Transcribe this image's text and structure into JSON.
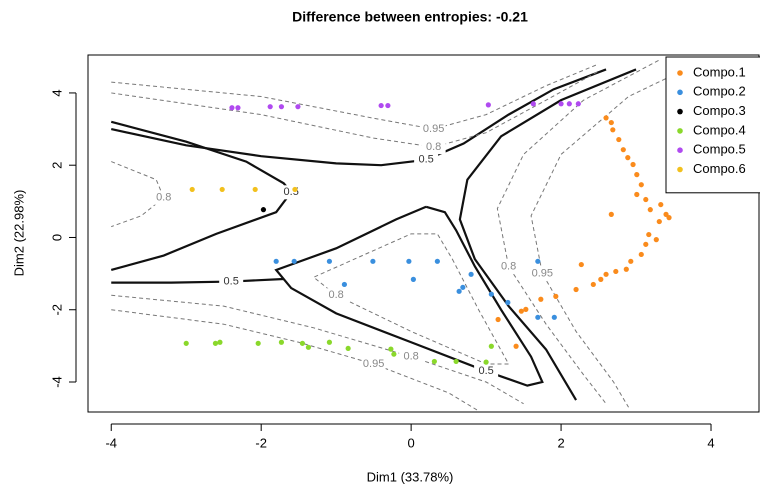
{
  "chart_data": {
    "type": "scatter",
    "title": "Difference between entropies: -0.21",
    "xlabel": "Dim1 (33.78%)",
    "ylabel": "Dim2 (22.98%)",
    "xlim": [
      -4.31,
      4.64
    ],
    "ylim": [
      -4.83,
      5.05
    ],
    "xticks": [
      -4,
      -2,
      0,
      2,
      4
    ],
    "yticks": [
      -4,
      -2,
      0,
      2,
      4
    ],
    "grid": false,
    "legend": "top-right",
    "series": [
      {
        "name": "Compo.1",
        "color": "#fa8b1c",
        "x": [
          2.6,
          2.67,
          2.69,
          2.77,
          2.83,
          2.89,
          2.96,
          3.01,
          3.07,
          3.01,
          3.13,
          3.19,
          3.33,
          3.4,
          3.44,
          3.31,
          3.17,
          3.27,
          3.13,
          3.07,
          2.93,
          2.87,
          2.73,
          2.6,
          2.53,
          2.43,
          2.2,
          1.93,
          1.73,
          1.53,
          1.47,
          1.16,
          1.4,
          2.67,
          2.27
        ],
        "y": [
          3.31,
          3.18,
          2.98,
          2.71,
          2.43,
          2.21,
          2.02,
          1.74,
          1.46,
          1.19,
          1.05,
          0.77,
          0.91,
          0.64,
          0.55,
          0.44,
          0.08,
          -0.06,
          -0.19,
          -0.47,
          -0.66,
          -0.88,
          -0.94,
          -1.02,
          -1.16,
          -1.3,
          -1.44,
          -1.63,
          -1.71,
          -1.99,
          -2.04,
          -2.27,
          -3.01,
          0.64,
          -0.75
        ]
      },
      {
        "name": "Compo.2",
        "color": "#3a8fde",
        "x": [
          -1.8,
          -1.56,
          -1.09,
          -0.89,
          -0.51,
          -0.03,
          0.03,
          0.35,
          0.8,
          0.64,
          0.69,
          1.07,
          1.29,
          1.69,
          1.91,
          1.69
        ],
        "y": [
          -0.66,
          -0.66,
          -0.66,
          -1.3,
          -0.66,
          -0.66,
          -1.16,
          -0.66,
          -1.02,
          -1.49,
          -1.38,
          -1.57,
          -1.8,
          -2.21,
          -2.21,
          -0.66
        ]
      },
      {
        "name": "Compo.3",
        "color": "#000000",
        "x": [
          -1.97
        ],
        "y": [
          0.77
        ]
      },
      {
        "name": "Compo.4",
        "color": "#8ad82b",
        "x": [
          -3.0,
          -2.61,
          -2.55,
          -2.04,
          -1.73,
          -1.45,
          -1.37,
          -1.09,
          -0.84,
          -0.27,
          -0.23,
          0.31,
          0.6,
          1.0,
          1.07
        ],
        "y": [
          -2.93,
          -2.93,
          -2.9,
          -2.93,
          -2.9,
          -2.93,
          -3.04,
          -2.9,
          -3.07,
          -3.09,
          -3.23,
          -3.43,
          -3.43,
          -3.45,
          -3.01
        ]
      },
      {
        "name": "Compo.5",
        "color": "#b04af0",
        "x": [
          -2.39,
          -2.31,
          -1.88,
          -1.73,
          -1.51,
          -0.4,
          -0.31,
          1.03,
          1.63,
          2.0,
          2.11,
          2.23
        ],
        "y": [
          3.59,
          3.59,
          3.62,
          3.62,
          3.62,
          3.65,
          3.65,
          3.67,
          3.7,
          3.7,
          3.7,
          3.7
        ]
      },
      {
        "name": "Compo.6",
        "color": "#f2c01d",
        "x": [
          -2.92,
          -2.52,
          -2.08,
          -1.55
        ],
        "y": [
          1.33,
          1.33,
          1.33,
          1.33
        ]
      }
    ],
    "contours": [
      {
        "level": 0.5,
        "style": "solid",
        "x": [
          -4,
          -3,
          -2.2,
          -1.7,
          -1.6,
          -1.8,
          -2.6,
          -3.3,
          -4
        ],
        "y": [
          3.2,
          2.65,
          2.1,
          1.5,
          1.25,
          0.7,
          0.1,
          -0.5,
          -0.9
        ]
      },
      {
        "level": 0.5,
        "style": "solid",
        "x": [
          -4,
          -3.2,
          -2.4,
          -1.7
        ],
        "y": [
          -1.25,
          -1.25,
          -1.22,
          -1.15
        ]
      },
      {
        "level": 0.5,
        "style": "solid",
        "x": [
          0.2,
          0.45,
          0.6,
          0.85,
          1.2,
          1.6,
          1.75,
          1.55,
          1.0,
          0.0,
          -1.0,
          -1.6,
          -1.8,
          -1.0,
          -0.2,
          0.2
        ],
        "y": [
          0.85,
          0.7,
          0.2,
          -0.8,
          -2.0,
          -3.3,
          -4.0,
          -4.1,
          -3.7,
          -2.9,
          -2.1,
          -1.4,
          -0.9,
          -0.3,
          0.5,
          0.85
        ]
      },
      {
        "level": 0.5,
        "style": "solid",
        "x": [
          -4,
          -3,
          -2,
          -1,
          -0.4,
          0.2,
          0.7,
          1.3,
          1.9,
          2.6
        ],
        "y": [
          3.0,
          2.55,
          2.25,
          2.05,
          2.0,
          2.15,
          2.6,
          3.4,
          4.1,
          4.65
        ]
      },
      {
        "level": 0.5,
        "style": "solid",
        "show_label": false,
        "x": [
          3.0,
          2.0,
          1.2,
          0.75,
          0.65,
          0.85,
          1.3,
          1.8,
          2.2
        ],
        "y": [
          4.65,
          3.8,
          2.8,
          1.6,
          0.5,
          -0.6,
          -1.9,
          -3.1,
          -4.5
        ]
      },
      {
        "level": 0.8,
        "style": "dashed",
        "x": [
          -4,
          -2,
          -0.5,
          0.3,
          1.0,
          1.8,
          2.5
        ],
        "y": [
          4.0,
          3.4,
          2.75,
          2.5,
          2.9,
          3.8,
          4.6
        ]
      },
      {
        "level": 0.95,
        "style": "dashed",
        "x": [
          -4,
          -2,
          -0.5,
          0.3,
          1.0,
          1.8,
          2.5
        ],
        "y": [
          4.3,
          3.9,
          3.3,
          3.0,
          3.4,
          4.2,
          4.8
        ]
      },
      {
        "level": 0.8,
        "style": "dashed",
        "x": [
          3.3,
          2.3,
          1.5,
          1.15,
          1.3,
          1.8,
          2.3,
          2.6
        ],
        "y": [
          4.9,
          3.8,
          2.3,
          0.8,
          -0.8,
          -2.4,
          -3.8,
          -4.6
        ]
      },
      {
        "level": 0.95,
        "style": "dashed",
        "x": [
          3.9,
          2.9,
          2.0,
          1.6,
          1.75,
          2.2,
          2.7,
          2.9
        ],
        "y": [
          4.9,
          3.9,
          2.3,
          0.6,
          -1.0,
          -2.6,
          -4.0,
          -4.7
        ]
      },
      {
        "level": 0.8,
        "style": "dashed",
        "x": [
          -4,
          -3.4,
          -3.3,
          -3.6,
          -4
        ],
        "y": [
          2.1,
          1.6,
          1.1,
          0.6,
          0.3
        ]
      },
      {
        "level": 0.8,
        "style": "dashed",
        "x": [
          -4,
          -2.5,
          -1.3,
          0,
          1,
          1.5
        ],
        "y": [
          -1.6,
          -1.9,
          -2.5,
          -3.3,
          -4.0,
          -4.6
        ]
      },
      {
        "level": 0.95,
        "style": "dashed",
        "x": [
          -4,
          -2.5,
          -1.5,
          -0.5,
          0.5,
          0.9
        ],
        "y": [
          -2.0,
          -2.4,
          -2.9,
          -3.5,
          -4.3,
          -4.8
        ]
      },
      {
        "level": 0.8,
        "style": "dashed",
        "x": [
          0.55,
          0.9,
          1.3,
          1.0,
          0.0,
          -1.0,
          -1.3,
          0.0,
          0.35,
          0.55
        ],
        "y": [
          -0.6,
          -2.0,
          -3.5,
          -3.5,
          -2.6,
          -1.6,
          -1.1,
          0.1,
          0.1,
          -0.6
        ]
      }
    ]
  }
}
